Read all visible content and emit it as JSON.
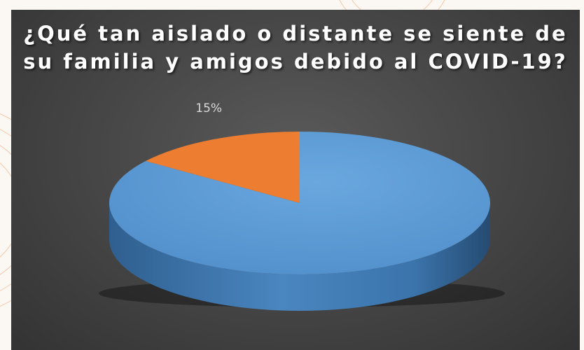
{
  "chart_data": {
    "type": "pie",
    "title": "¿Qué tan aislado o distante se siente de su familia y amigos debido al COVID-19?",
    "categories": [
      "",
      ""
    ],
    "values": [
      85,
      15
    ],
    "data_labels": [
      "",
      "15%"
    ],
    "colors": [
      "#5b9bd5",
      "#ed7d31"
    ],
    "legend": "none",
    "style": "3d"
  }
}
